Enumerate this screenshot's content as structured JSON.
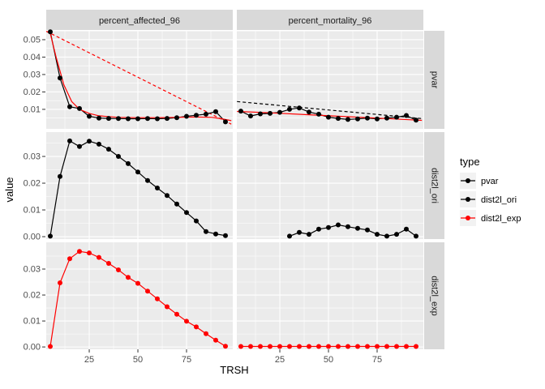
{
  "style": {
    "background": "#FFFFFF",
    "panel_bg": "#EBEBEB",
    "strip_bg": "#D9D9D9",
    "grid_color": "#FFFFFF",
    "tick_mark_color": "#333333",
    "tick_label_color": "#4D4D4D",
    "strip_text_color": "#1A1A1A",
    "title_color": "#000000",
    "legend_key_bg": "#F2F2F2",
    "black_series": "#000000",
    "red_series": "#FF0000"
  },
  "facets": {
    "col_labels": [
      "percent_affected_96",
      "percent_mortality_96"
    ],
    "row_labels": [
      "pvar",
      "dist2l_ori",
      "dist2l_exp"
    ]
  },
  "axes": {
    "x_title": "TRSH",
    "y_title": "value",
    "x_tick_values": [
      25,
      50,
      75
    ],
    "x_tick_labels": [
      "25",
      "50",
      "75"
    ],
    "x_range_hint": [
      5,
      95
    ]
  },
  "y_axis": {
    "rows": [
      {
        "row_label": "pvar",
        "tick_values": [
          0.01,
          0.02,
          0.03,
          0.04,
          0.05
        ],
        "tick_labels": [
          "0.01",
          "0.02",
          "0.03",
          "0.04",
          "0.05"
        ],
        "ylim": [
          0,
          0.055
        ]
      },
      {
        "row_label": "dist2l_ori",
        "tick_values": [
          0.0,
          0.01,
          0.02,
          0.03
        ],
        "tick_labels": [
          "0.00",
          "0.01",
          "0.02",
          "0.03"
        ],
        "ylim": [
          0,
          0.039
        ]
      },
      {
        "row_label": "dist2l_exp",
        "tick_values": [
          0.0,
          0.01,
          0.02,
          0.03
        ],
        "tick_labels": [
          "0.00",
          "0.01",
          "0.02",
          "0.03"
        ],
        "ylim": [
          0,
          0.04
        ]
      }
    ]
  },
  "legend": {
    "title": "type",
    "entries": [
      {
        "label": "pvar",
        "color": "#000000"
      },
      {
        "label": "dist2l_ori",
        "color": "#000000"
      },
      {
        "label": "dist2l_exp",
        "color": "#FF0000"
      }
    ]
  },
  "chart_data": [
    {
      "type": "line",
      "facet_row": "pvar",
      "facet_col": "percent_affected_96",
      "row": 0,
      "col": 0,
      "series": [
        {
          "name": "fit-linear-red-dashed",
          "color": "#FF0000",
          "dash": true,
          "points": false,
          "x": [
            3,
            98
          ],
          "y": [
            0.0548,
            0.0015
          ]
        },
        {
          "name": "pvar",
          "color": "#000000",
          "dash": false,
          "points": true,
          "x": [
            5,
            10,
            15,
            20,
            25,
            30,
            35,
            40,
            45,
            50,
            55,
            60,
            65,
            70,
            75,
            80,
            85,
            90,
            95
          ],
          "y": [
            0.0545,
            0.028,
            0.0115,
            0.0105,
            0.006,
            0.005,
            0.0048,
            0.0047,
            0.0046,
            0.0046,
            0.0047,
            0.0046,
            0.0048,
            0.0052,
            0.006,
            0.0066,
            0.0072,
            0.0087,
            0.0028
          ]
        },
        {
          "name": "fit-smooth-red",
          "color": "#FF0000",
          "dash": false,
          "points": false,
          "x": [
            3,
            5,
            8,
            12,
            16,
            20,
            25,
            30,
            40,
            50,
            60,
            70,
            80,
            88,
            93,
            98
          ],
          "y": [
            0.0548,
            0.0535,
            0.04,
            0.024,
            0.0145,
            0.01,
            0.0077,
            0.0063,
            0.0054,
            0.0052,
            0.0052,
            0.0054,
            0.0056,
            0.0054,
            0.0046,
            0.0035
          ]
        }
      ]
    },
    {
      "type": "line",
      "facet_row": "pvar",
      "facet_col": "percent_mortality_96",
      "row": 0,
      "col": 1,
      "series": [
        {
          "name": "fit-linear-black-dashed",
          "color": "#000000",
          "dash": true,
          "points": false,
          "x": [
            3,
            98
          ],
          "y": [
            0.0145,
            0.0047
          ]
        },
        {
          "name": "pvar",
          "color": "#000000",
          "dash": false,
          "points": true,
          "x": [
            5,
            10,
            15,
            20,
            25,
            30,
            35,
            40,
            45,
            50,
            55,
            60,
            65,
            70,
            75,
            80,
            85,
            90,
            95
          ],
          "y": [
            0.009,
            0.0062,
            0.0074,
            0.0077,
            0.0083,
            0.01,
            0.0108,
            0.0085,
            0.0072,
            0.0055,
            0.0048,
            0.0042,
            0.0045,
            0.005,
            0.0045,
            0.005,
            0.0055,
            0.0065,
            0.0038
          ]
        },
        {
          "name": "fit-red",
          "color": "#FF0000",
          "dash": false,
          "points": false,
          "x": [
            3,
            20,
            40,
            60,
            80,
            98
          ],
          "y": [
            0.0088,
            0.008,
            0.0069,
            0.0058,
            0.0047,
            0.0037
          ]
        }
      ]
    },
    {
      "type": "line",
      "facet_row": "dist2l_ori",
      "facet_col": "percent_affected_96",
      "row": 1,
      "col": 0,
      "series": [
        {
          "name": "dist2l_ori",
          "color": "#000000",
          "dash": false,
          "points": true,
          "x": [
            5,
            10,
            15,
            20,
            25,
            30,
            35,
            40,
            45,
            50,
            55,
            60,
            65,
            70,
            75,
            80,
            85,
            90,
            95
          ],
          "y": [
            0.0002,
            0.0225,
            0.0358,
            0.0337,
            0.0357,
            0.0346,
            0.0327,
            0.03,
            0.0273,
            0.0242,
            0.021,
            0.0182,
            0.0154,
            0.0122,
            0.009,
            0.0059,
            0.0019,
            0.001,
            0.0004
          ]
        }
      ]
    },
    {
      "type": "line",
      "facet_row": "dist2l_ori",
      "facet_col": "percent_mortality_96",
      "row": 1,
      "col": 1,
      "series": [
        {
          "name": "dist2l_ori",
          "color": "#000000",
          "dash": false,
          "points": true,
          "x": [
            30,
            35,
            40,
            45,
            50,
            55,
            60,
            65,
            70,
            75,
            80,
            85,
            90,
            95
          ],
          "y": [
            0.0002,
            0.0016,
            0.0009,
            0.0028,
            0.0034,
            0.0044,
            0.0037,
            0.0031,
            0.0025,
            0.0009,
            0.0002,
            0.0009,
            0.0028,
            0.0002
          ]
        }
      ]
    },
    {
      "type": "line",
      "facet_row": "dist2l_exp",
      "facet_col": "percent_affected_96",
      "row": 2,
      "col": 0,
      "series": [
        {
          "name": "dist2l_exp",
          "color": "#FF0000",
          "dash": false,
          "points": true,
          "x": [
            5,
            10,
            15,
            20,
            25,
            30,
            35,
            40,
            45,
            50,
            55,
            60,
            65,
            70,
            75,
            80,
            85,
            90,
            95
          ],
          "y": [
            0.0002,
            0.0247,
            0.034,
            0.0368,
            0.0362,
            0.0345,
            0.0322,
            0.0297,
            0.0268,
            0.0245,
            0.0215,
            0.0185,
            0.0155,
            0.0126,
            0.0099,
            0.0077,
            0.0051,
            0.0026,
            0.0003
          ]
        }
      ]
    },
    {
      "type": "line",
      "facet_row": "dist2l_exp",
      "facet_col": "percent_mortality_96",
      "row": 2,
      "col": 1,
      "series": [
        {
          "name": "dist2l_exp",
          "color": "#FF0000",
          "dash": false,
          "points": true,
          "x": [
            5,
            10,
            15,
            20,
            25,
            30,
            35,
            40,
            45,
            50,
            55,
            60,
            65,
            70,
            75,
            80,
            85,
            90,
            95
          ],
          "y": [
            0.0002,
            0.0002,
            0.0002,
            0.0002,
            0.0002,
            0.0002,
            0.0002,
            0.0002,
            0.0002,
            0.0002,
            0.0002,
            0.0002,
            0.0002,
            0.0002,
            0.0002,
            0.0002,
            0.0002,
            0.0002,
            0.0002
          ]
        }
      ]
    }
  ]
}
